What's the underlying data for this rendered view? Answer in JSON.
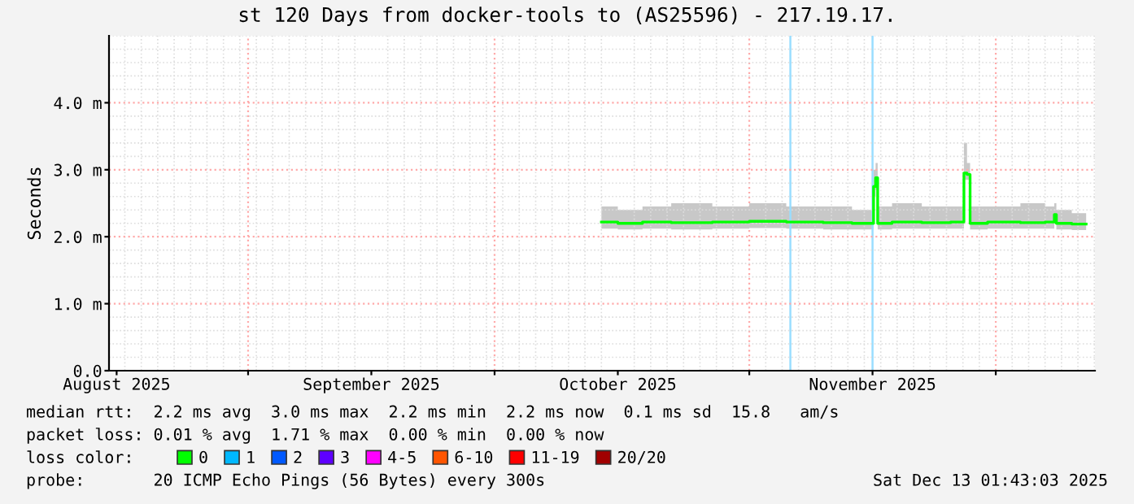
{
  "chart_data": {
    "type": "line",
    "title": "st 120 Days from docker-tools to (AS25596) - 217.19.17.",
    "ylabel": "Seconds",
    "xlim": [
      "2025-08-15T01:43",
      "2025-12-13T01:43"
    ],
    "xticks": [
      {
        "value": "2025-08-16",
        "label": "August 2025"
      },
      {
        "value": "2025-09-01",
        "label": null
      },
      {
        "value": "2025-09-16",
        "label": "September 2025"
      },
      {
        "value": "2025-10-01",
        "label": null
      },
      {
        "value": "2025-10-16",
        "label": "October 2025"
      },
      {
        "value": "2025-11-01",
        "label": null
      },
      {
        "value": "2025-11-16",
        "label": "November 2025"
      },
      {
        "value": "2025-12-01",
        "label": null
      }
    ],
    "ylim": [
      0,
      5.0
    ],
    "yticks": [
      {
        "value": 0,
        "label": "0.0"
      },
      {
        "value": 1.0,
        "label": "1.0 m"
      },
      {
        "value": 2.0,
        "label": "2.0 m"
      },
      {
        "value": 3.0,
        "label": "3.0 m"
      },
      {
        "value": 4.0,
        "label": "4.0 m"
      }
    ],
    "grid": true,
    "legend": "bottom",
    "legend_title": "loss color:",
    "line_style": "solid",
    "ref_lines": [
      {
        "axis": "x",
        "value": "2025-11-06",
        "label": null,
        "color": "#99ddff"
      },
      {
        "axis": "x",
        "value": "2025-11-16",
        "label": null,
        "color": "#99ddff"
      }
    ],
    "series": [
      {
        "name": "0",
        "color": "#00ff00",
        "x": [
          "2025-10-14",
          "2025-10-18",
          "2025-10-20",
          "2025-10-25",
          "2025-10-30",
          "2025-11-03",
          "2025-11-08",
          "2025-11-12",
          "2025-11-15",
          "2025-11-16T00:00",
          "2025-11-16T06:00",
          "2025-11-16T12:00",
          "2025-11-16T18:00",
          "2025-11-20",
          "2025-11-24",
          "2025-11-27T00:00",
          "2025-11-27T06:00",
          "2025-11-27T18:00",
          "2025-11-28T00:00",
          "2025-12-02",
          "2025-12-06",
          "2025-12-08T00:00",
          "2025-12-08T06:00",
          "2025-12-08T12:00",
          "2025-12-12"
        ],
        "values": [
          2.22,
          2.2,
          2.22,
          2.21,
          2.22,
          2.23,
          2.22,
          2.21,
          2.2,
          2.2,
          2.75,
          2.88,
          2.2,
          2.22,
          2.21,
          2.22,
          2.95,
          2.93,
          2.2,
          2.22,
          2.21,
          2.22,
          2.33,
          2.2,
          2.19
        ],
        "lower": [
          2.12,
          2.11,
          2.12,
          2.11,
          2.12,
          2.13,
          2.12,
          2.11,
          2.11,
          2.11,
          2.6,
          2.7,
          2.11,
          2.12,
          2.12,
          2.12,
          2.85,
          2.85,
          2.11,
          2.12,
          2.12,
          2.12,
          2.2,
          2.11,
          2.1
        ],
        "upper": [
          2.45,
          2.4,
          2.45,
          2.5,
          2.45,
          2.5,
          2.45,
          2.45,
          2.4,
          2.4,
          3.0,
          3.1,
          2.45,
          2.5,
          2.45,
          2.45,
          3.4,
          3.1,
          2.45,
          2.45,
          2.5,
          2.45,
          2.5,
          2.4,
          2.35
        ]
      },
      {
        "name": "1",
        "color": "#00b8ff"
      },
      {
        "name": "2",
        "color": "#0059ff"
      },
      {
        "name": "3",
        "color": "#5e00ff"
      },
      {
        "name": "4-5",
        "color": "#ff00ff"
      },
      {
        "name": "6-10",
        "color": "#ff5500"
      },
      {
        "name": "11-19",
        "color": "#ff0000"
      },
      {
        "name": "20/20",
        "color": "#a10000"
      }
    ],
    "annotations": [
      "median rtt:  2.2 ms avg  3.0 ms max  2.2 ms min  2.2 ms now  0.1 ms sd  15.8   am/s",
      "packet loss: 0.01 % avg  1.71 % max  0.00 % min  0.00 % now",
      "probe:       20 ICMP Echo Pings (56 Bytes) every 300s",
      "Sat Dec 13 01:43:03 2025"
    ]
  }
}
